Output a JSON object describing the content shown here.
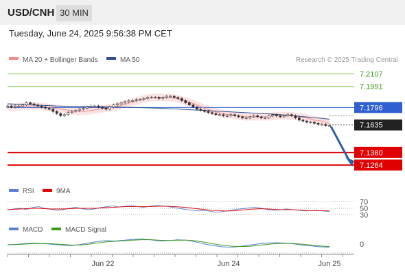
{
  "header": {
    "symbol": "USD/CNH",
    "timeframe": "30 MIN",
    "timestamp": "Tuesday, June 24, 2025 9:56:38 PM CET"
  },
  "legend": {
    "ma20_label": "MA 20 + Bollinger Bands",
    "ma50_label": "MA 50",
    "ma20_color": "#f08a8a",
    "ma50_color": "#2f4f8f",
    "credit": "Research © 2025 Trading Central"
  },
  "rsi_legend": {
    "rsi_label": "RSI",
    "ma_label": "9MA",
    "rsi_color": "#5a7fd0",
    "ma_color": "#e00000"
  },
  "macd_legend": {
    "macd_label": "MACD",
    "signal_label": "MACD Signal",
    "macd_color": "#5a7fd0",
    "signal_color": "#3a9a1a"
  },
  "chart_data": [
    {
      "type": "candlestick",
      "title": "",
      "x_labels": [
        "Jun 22",
        "Jun 24",
        "Jun 25"
      ],
      "ylim": [
        7.115,
        7.218
      ],
      "current_price": 7.1635,
      "levels": [
        {
          "value": 7.2107,
          "label": "7.2107",
          "kind": "resistance",
          "color": "#7bbf3a"
        },
        {
          "value": 7.1991,
          "label": "7.1991",
          "kind": "resistance",
          "color": "#7bbf3a"
        },
        {
          "value": 7.1796,
          "label": "7.1796",
          "kind": "pivot",
          "color": "#2f5fd0"
        },
        {
          "value": 7.138,
          "label": "7.1380",
          "kind": "support",
          "color": "#e00000"
        },
        {
          "value": 7.1264,
          "label": "7.1264",
          "kind": "support",
          "color": "#e00000"
        }
      ],
      "close_series": [
        7.181,
        7.18,
        7.181,
        7.181,
        7.182,
        7.184,
        7.183,
        7.182,
        7.181,
        7.18,
        7.179,
        7.178,
        7.176,
        7.174,
        7.172,
        7.173,
        7.175,
        7.176,
        7.177,
        7.178,
        7.179,
        7.18,
        7.181,
        7.181,
        7.18,
        7.179,
        7.178,
        7.18,
        7.182,
        7.183,
        7.184,
        7.185,
        7.186,
        7.186,
        7.187,
        7.187,
        7.188,
        7.189,
        7.189,
        7.189,
        7.188,
        7.189,
        7.19,
        7.19,
        7.189,
        7.188,
        7.186,
        7.184,
        7.182,
        7.18,
        7.178,
        7.177,
        7.176,
        7.175,
        7.174,
        7.173,
        7.173,
        7.172,
        7.172,
        7.173,
        7.172,
        7.171,
        7.17,
        7.17,
        7.171,
        7.172,
        7.171,
        7.17,
        7.17,
        7.172,
        7.173,
        7.172,
        7.171,
        7.172,
        7.173,
        7.172,
        7.17,
        7.168,
        7.167,
        7.166,
        7.166,
        7.165,
        7.164,
        7.164,
        7.163,
        7.163
      ],
      "ma20": [
        7.18,
        7.18,
        7.181,
        7.181,
        7.181,
        7.18,
        7.179,
        7.178,
        7.177,
        7.176,
        7.176,
        7.177,
        7.178,
        7.179,
        7.18,
        7.182,
        7.184,
        7.186,
        7.188,
        7.189,
        7.189,
        7.189,
        7.188,
        7.186,
        7.184,
        7.181,
        7.178,
        7.176,
        7.174,
        7.173,
        7.172,
        7.171,
        7.171,
        7.171,
        7.171,
        7.172,
        7.172,
        7.172,
        7.171,
        7.17,
        7.168,
        7.167,
        7.165
      ],
      "ma50": [
        7.183,
        7.1825,
        7.182,
        7.1815,
        7.181,
        7.1808,
        7.1806,
        7.1805,
        7.1803,
        7.18,
        7.1797,
        7.1794,
        7.179,
        7.1786,
        7.178,
        7.1774,
        7.1768,
        7.1762,
        7.1756,
        7.175,
        7.1744,
        7.1738,
        7.173,
        7.172,
        7.171,
        7.17,
        7.1688
      ],
      "forecast": {
        "from": 7.1635,
        "to": 7.1264
      }
    },
    {
      "type": "line",
      "title": "",
      "series_labels": [
        "RSI",
        "9MA"
      ],
      "levels": [
        {
          "value": 70,
          "label": "70"
        },
        {
          "value": 50,
          "label": "50"
        },
        {
          "value": 30,
          "label": "30"
        }
      ],
      "ylim": [
        25,
        75
      ],
      "series": [
        {
          "name": "RSI",
          "values": [
            45,
            48,
            50,
            46,
            52,
            55,
            50,
            47,
            44,
            46,
            50,
            53,
            49,
            46,
            48,
            52,
            55,
            57,
            54,
            56,
            58,
            55,
            53,
            56,
            59,
            57,
            55,
            52,
            49,
            46,
            44,
            42,
            44,
            40,
            38,
            41,
            44,
            47,
            49,
            51,
            53,
            50,
            46,
            44,
            45,
            48,
            46,
            44,
            42,
            43,
            44,
            42,
            40
          ]
        },
        {
          "name": "9MA",
          "values": [
            46,
            47,
            48,
            49,
            50,
            50,
            49,
            48,
            48,
            48,
            49,
            50,
            50,
            50,
            50,
            51,
            52,
            53,
            54,
            55,
            55,
            55,
            55,
            55,
            56,
            56,
            56,
            55,
            54,
            52,
            50,
            48,
            46,
            44,
            43,
            42,
            42,
            43,
            45,
            47,
            48,
            49,
            48,
            47,
            46,
            46,
            46,
            45,
            44,
            43,
            43,
            43,
            42
          ]
        }
      ]
    },
    {
      "type": "line",
      "title": "",
      "series_labels": [
        "MACD",
        "MACD Signal"
      ],
      "zero_label": "0",
      "ylim": [
        -1,
        1
      ],
      "series": [
        {
          "name": "MACD",
          "values": [
            0.0,
            0.05,
            0.15,
            0.2,
            0.15,
            0.05,
            -0.05,
            -0.1,
            0.0,
            0.2,
            0.4,
            0.5,
            0.45,
            0.55,
            0.65,
            0.7,
            0.6,
            0.45,
            0.5,
            0.6,
            0.55,
            0.35,
            0.1,
            -0.1,
            -0.25,
            -0.3,
            -0.2,
            -0.05,
            0.1,
            0.2,
            0.25,
            0.2,
            0.1,
            -0.05,
            -0.15,
            -0.25,
            -0.3
          ]
        },
        {
          "name": "MACD Signal",
          "values": [
            0.0,
            0.02,
            0.08,
            0.14,
            0.16,
            0.12,
            0.05,
            -0.02,
            -0.04,
            0.05,
            0.2,
            0.35,
            0.42,
            0.48,
            0.55,
            0.62,
            0.62,
            0.55,
            0.52,
            0.55,
            0.56,
            0.48,
            0.32,
            0.12,
            -0.05,
            -0.17,
            -0.22,
            -0.18,
            -0.08,
            0.04,
            0.13,
            0.17,
            0.14,
            0.06,
            -0.04,
            -0.14,
            -0.22
          ]
        }
      ]
    }
  ]
}
